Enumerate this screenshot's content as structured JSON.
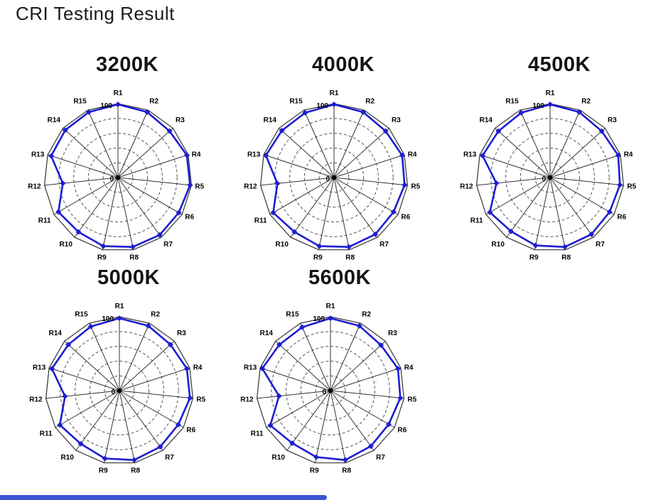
{
  "page": {
    "title": "CRI Testing Result"
  },
  "scrollbar": {
    "color": "#3b55d2"
  },
  "chart_data": [
    {
      "type": "radar",
      "title": "3200K",
      "categories": [
        "R1",
        "R2",
        "R3",
        "R4",
        "R5",
        "R6",
        "R7",
        "R8",
        "R9",
        "R10",
        "R11",
        "R12",
        "R13",
        "R14",
        "R15"
      ],
      "values": [
        99,
        97,
        94,
        98,
        98,
        95,
        96,
        96,
        95,
        91,
        93,
        75,
        95,
        96,
        97
      ],
      "rmin": 0,
      "rmax": 100,
      "rings": 4,
      "max_label": "100",
      "center_label": "0",
      "color": "#1e1ed2",
      "grid": true,
      "legend": "none"
    },
    {
      "type": "radar",
      "title": "4000K",
      "categories": [
        "R1",
        "R2",
        "R3",
        "R4",
        "R5",
        "R6",
        "R7",
        "R8",
        "R9",
        "R10",
        "R11",
        "R12",
        "R13",
        "R14",
        "R15"
      ],
      "values": [
        99,
        97,
        94,
        97,
        96,
        93,
        95,
        96,
        95,
        91,
        95,
        77,
        97,
        95,
        96
      ],
      "rmin": 0,
      "rmax": 100,
      "rings": 4,
      "max_label": "100",
      "center_label": "0",
      "color": "#1e1ed2",
      "grid": true,
      "legend": "none"
    },
    {
      "type": "radar",
      "title": "4500K",
      "categories": [
        "R1",
        "R2",
        "R3",
        "R4",
        "R5",
        "R6",
        "R7",
        "R8",
        "R9",
        "R10",
        "R11",
        "R12",
        "R13",
        "R14",
        "R15"
      ],
      "values": [
        99,
        97,
        94,
        97,
        95,
        93,
        95,
        96,
        94,
        90,
        94,
        73,
        96,
        94,
        96
      ],
      "rmin": 0,
      "rmax": 100,
      "rings": 4,
      "max_label": "100",
      "center_label": "0",
      "color": "#1e1ed2",
      "grid": true,
      "legend": "none"
    },
    {
      "type": "radar",
      "title": "5000K",
      "categories": [
        "R1",
        "R2",
        "R3",
        "R4",
        "R5",
        "R6",
        "R7",
        "R8",
        "R9",
        "R10",
        "R11",
        "R12",
        "R13",
        "R14",
        "R15"
      ],
      "values": [
        98,
        96,
        93,
        96,
        96,
        92,
        94,
        96,
        94,
        89,
        93,
        74,
        96,
        93,
        95
      ],
      "rmin": 0,
      "rmax": 100,
      "rings": 4,
      "max_label": "100",
      "center_label": "0",
      "color": "#1e1ed2",
      "grid": true,
      "legend": "none"
    },
    {
      "type": "radar",
      "title": "5600K",
      "categories": [
        "R1",
        "R2",
        "R3",
        "R4",
        "R5",
        "R6",
        "R7",
        "R8",
        "R9",
        "R10",
        "R11",
        "R12",
        "R13",
        "R14",
        "R15"
      ],
      "values": [
        98,
        96,
        92,
        96,
        95,
        91,
        93,
        96,
        92,
        88,
        94,
        70,
        97,
        93,
        94
      ],
      "rmin": 0,
      "rmax": 100,
      "rings": 4,
      "max_label": "100",
      "center_label": "0",
      "color": "#1e1ed2",
      "grid": true,
      "legend": "none"
    }
  ]
}
